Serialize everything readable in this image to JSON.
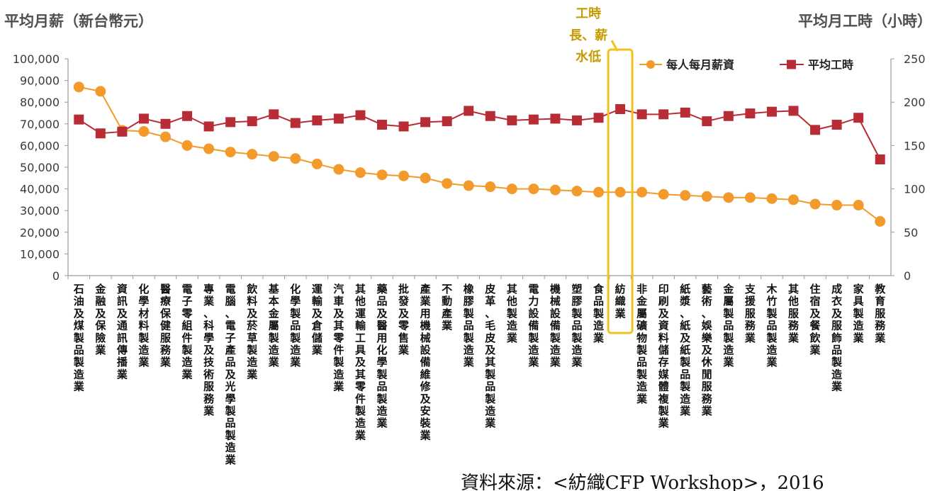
{
  "chart_data": {
    "type": "line",
    "y_left_label": "平均月薪（新台幣元）",
    "y_right_label": "平均月工時（小時）",
    "ylim_left": [
      0,
      100000
    ],
    "ylim_right": [
      0,
      250
    ],
    "yticks_left": [
      "100,000",
      "90,000",
      "80,000",
      "70,000",
      "60,000",
      "50,000",
      "40,000",
      "30,000",
      "20,000",
      "10,000",
      "0"
    ],
    "yticks_right": [
      "250",
      "200",
      "150",
      "100",
      "50",
      "0"
    ],
    "categories": [
      "石油及煤製品製造業",
      "金融及保險業",
      "資訊及通訊傳播業",
      "化學材料製造業",
      "醫療保健服務業",
      "電子零組件製造業",
      "專業、科學及技術服務業",
      "電腦、電子產品及光學製品製造業",
      "飲料及菸草製造業",
      "基本金屬製造業",
      "化學製品製造業",
      "運輸及倉儲業",
      "汽車及其零件製造業",
      "其他運輸工具及其零件製造業",
      "藥品及醫用化學製品製造業",
      "批發及零售業",
      "產業用機械設備維修及安裝業",
      "不動產業",
      "橡膠製品製造業",
      "皮革、毛皮及其製品製造業",
      "其他製造業",
      "電力設備製造業",
      "機械設備製造業",
      "塑膠製品製造業",
      "食品製造業",
      "紡織業",
      "非金屬礦物製品製造業",
      "印刷及資料儲存媒體複製業",
      "紙漿、紙及紙製品製造業",
      "藝術、娛樂及休閒服務業",
      "金屬製品製造業",
      "支援服務業",
      "木竹製品製造業",
      "其他服務業",
      "住宿及餐飲業",
      "成衣及服飾品製造業",
      "家具製造業",
      "教育服務業"
    ],
    "series": [
      {
        "name": "每人每月薪資",
        "axis": "left",
        "color": "#f39a2c",
        "marker": "circle",
        "values": [
          87000,
          85000,
          67000,
          66500,
          64000,
          60000,
          58500,
          57000,
          56000,
          55000,
          54000,
          51500,
          49000,
          47500,
          46500,
          46000,
          45000,
          42500,
          41500,
          41000,
          40000,
          40000,
          39500,
          39000,
          38500,
          38500,
          38500,
          37500,
          37000,
          36500,
          36000,
          36000,
          35500,
          35000,
          33000,
          32500,
          32500,
          25000
        ]
      },
      {
        "name": "平均工時",
        "axis": "right",
        "color": "#b82d35",
        "marker": "square",
        "values": [
          180,
          164,
          166,
          181,
          175,
          184,
          172,
          177,
          178,
          186,
          176,
          179,
          181,
          185,
          174,
          172,
          177,
          178,
          190,
          184,
          179,
          180,
          181,
          179,
          182,
          192,
          186,
          186,
          188,
          178,
          184,
          187,
          189,
          190,
          168,
          174,
          182,
          134
        ]
      }
    ],
    "legend_position": "top-right",
    "grid": false,
    "highlight_index": 25,
    "annotation": [
      "工時",
      "長、薪",
      "水低"
    ],
    "source": "資料來源：<紡織CFP Workshop>，2016"
  }
}
